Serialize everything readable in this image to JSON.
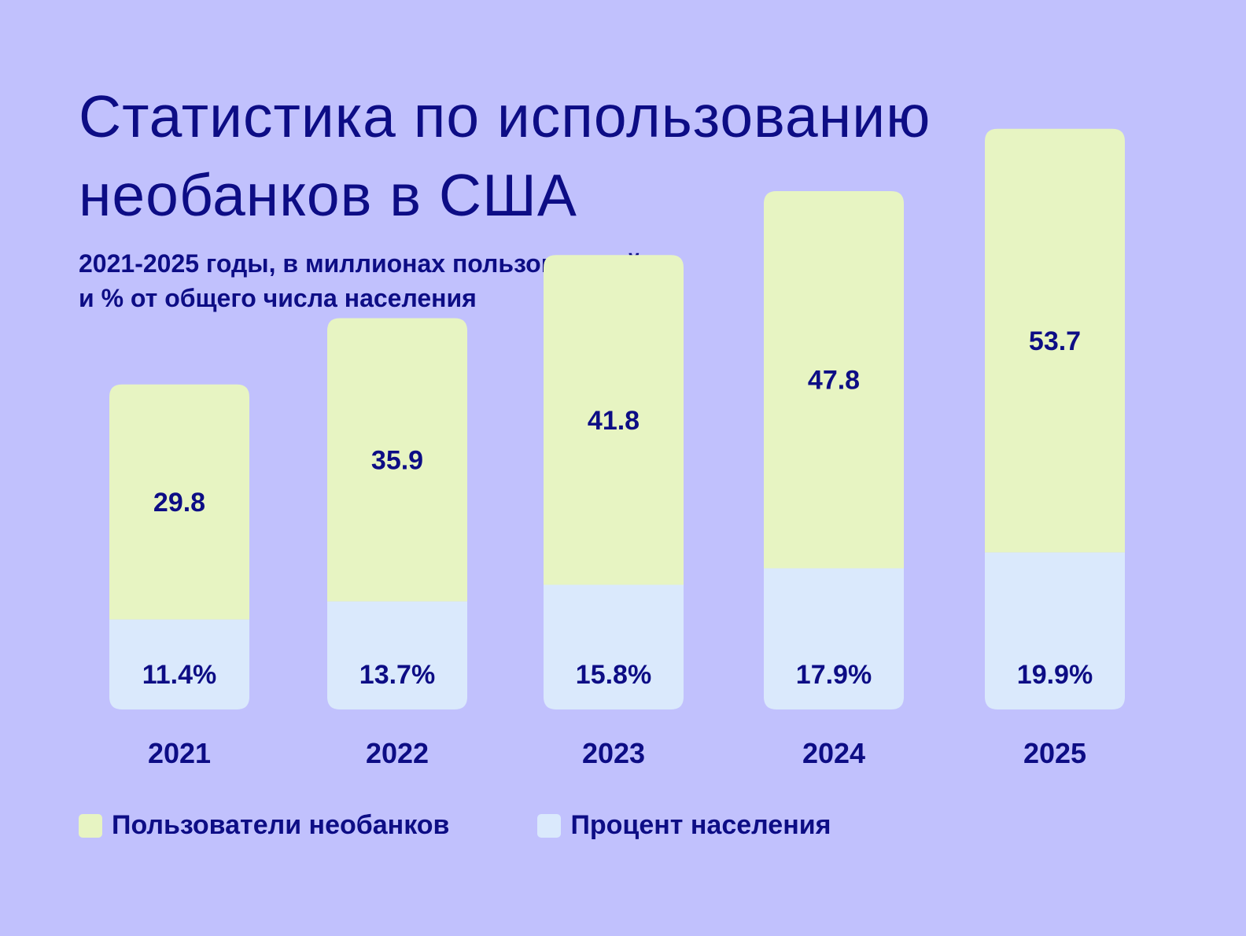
{
  "title_lines": [
    "Статистика по использованию",
    "необанков в США"
  ],
  "subtitle_lines": [
    "2021-2025 годы, в миллионах пользователей",
    "и % от общего числа населения"
  ],
  "colors": {
    "background": "#c1c1fd",
    "text": "#0d0d85",
    "users": "#e7f4c2",
    "percent": "#dae9fc"
  },
  "chart_data": {
    "type": "bar",
    "stacked": true,
    "categories": [
      "2021",
      "2022",
      "2023",
      "2024",
      "2025"
    ],
    "series": [
      {
        "name": "Пользователи необанков",
        "values": [
          29.8,
          35.9,
          41.8,
          47.8,
          53.7
        ],
        "labels": [
          "29.8",
          "35.9",
          "41.8",
          "47.8",
          "53.7"
        ],
        "color": "#e7f4c2"
      },
      {
        "name": "Процент населения",
        "values": [
          11.4,
          13.7,
          15.8,
          17.9,
          19.9
        ],
        "labels": [
          "11.4%",
          "13.7%",
          "15.8%",
          "17.9%",
          "19.9%"
        ],
        "color": "#dae9fc"
      }
    ],
    "legend_position": "bottom-left",
    "grid": false,
    "axes_visible": false
  },
  "legend": [
    {
      "label": "Пользователи необанков",
      "color": "#e7f4c2"
    },
    {
      "label": "Процент населения",
      "color": "#dae9fc"
    }
  ]
}
